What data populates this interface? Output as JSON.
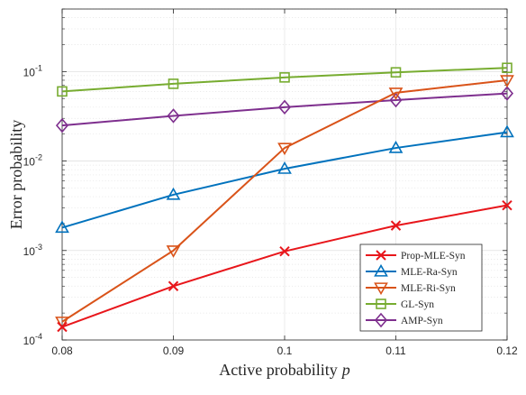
{
  "chart_data": {
    "type": "line",
    "title": "",
    "xlabel": "Active probability",
    "xlabel_symbol": "p",
    "ylabel": "Error probability",
    "x": [
      0.08,
      0.09,
      0.1,
      0.11,
      0.12
    ],
    "x_tick_labels": [
      "0.08",
      "0.09",
      "0.1",
      "0.11",
      "0.12"
    ],
    "xlim": [
      0.08,
      0.12
    ],
    "yscale": "log",
    "ylim": [
      0.0001,
      0.5
    ],
    "y_tick_labels": [
      {
        "base": "10",
        "exp": "-4",
        "value": 0.0001
      },
      {
        "base": "10",
        "exp": "-3",
        "value": 0.001
      },
      {
        "base": "10",
        "exp": "-2",
        "value": 0.01
      },
      {
        "base": "10",
        "exp": "-1",
        "value": 0.1
      }
    ],
    "grid": true,
    "legend_position": "bottom-right",
    "series": [
      {
        "name": "Prop-MLE-Syn",
        "color": "#e8161b",
        "marker": "x",
        "values": [
          0.00014,
          0.0004,
          0.00098,
          0.0019,
          0.0032
        ]
      },
      {
        "name": "MLE-Ra-Syn",
        "color": "#0072bd",
        "marker": "triangle-up",
        "values": [
          0.0018,
          0.0042,
          0.0082,
          0.014,
          0.021
        ]
      },
      {
        "name": "MLE-Ri-Syn",
        "color": "#d95319",
        "marker": "triangle-down",
        "values": [
          0.00016,
          0.001,
          0.014,
          0.058,
          0.08
        ]
      },
      {
        "name": "GL-Syn",
        "color": "#77ac30",
        "marker": "square",
        "values": [
          0.06,
          0.073,
          0.086,
          0.098,
          0.11
        ]
      },
      {
        "name": "AMP-Syn",
        "color": "#7e2f8e",
        "marker": "diamond",
        "values": [
          0.025,
          0.032,
          0.04,
          0.048,
          0.057
        ]
      }
    ]
  }
}
